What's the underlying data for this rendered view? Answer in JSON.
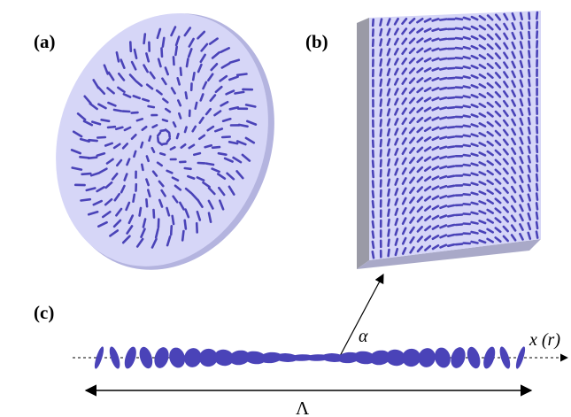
{
  "figure": {
    "panels": [
      {
        "id": "a",
        "label": "(a)",
        "description": "radial"
      },
      {
        "id": "b",
        "label": "(b)",
        "description": "linear"
      },
      {
        "id": "c",
        "label": "(c)",
        "description": "profile"
      }
    ],
    "annotations": {
      "alpha": "α",
      "axis": "x (r)",
      "period": "Λ"
    },
    "colors": {
      "plate": "#d6d6f7",
      "plate_edge": "#b4b4df",
      "plate_side": "#9a9aa6",
      "molecule": "#4a43b8"
    }
  }
}
